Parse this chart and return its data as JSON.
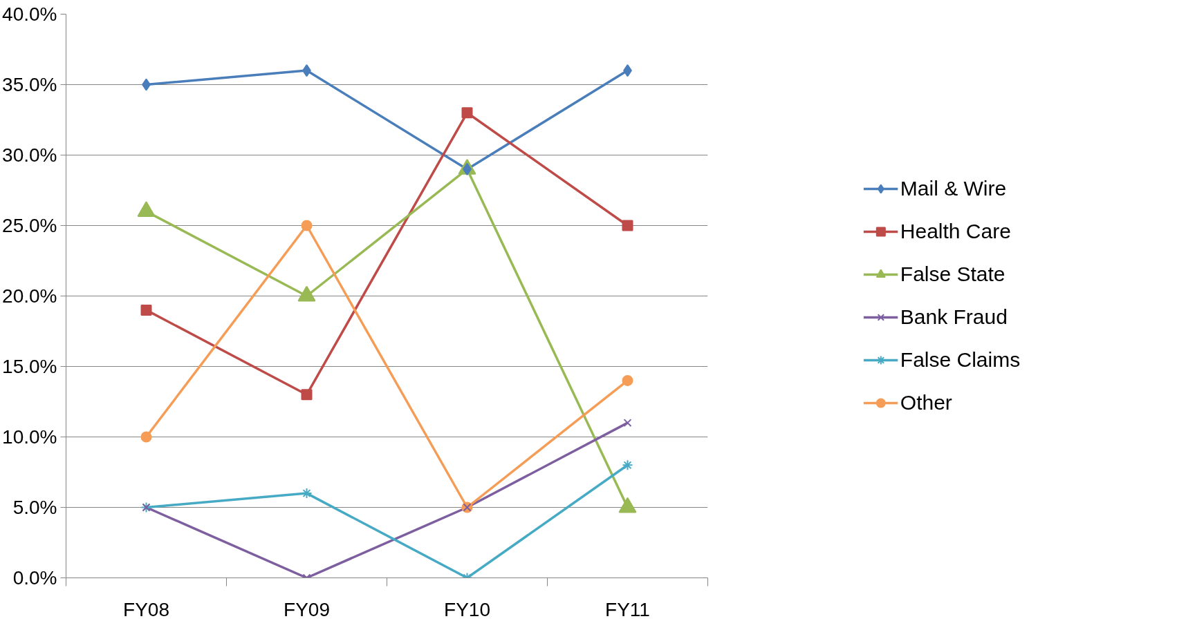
{
  "chart_data": {
    "type": "line",
    "categories": [
      "FY08",
      "FY09",
      "FY10",
      "FY11"
    ],
    "ylim": [
      0,
      40
    ],
    "yticks": [
      {
        "value": 0,
        "label": "0.0%"
      },
      {
        "value": 5,
        "label": "5.0%"
      },
      {
        "value": 10,
        "label": "10.0%"
      },
      {
        "value": 15,
        "label": "15.0%"
      },
      {
        "value": 20,
        "label": "20.0%"
      },
      {
        "value": 25,
        "label": "25.0%"
      },
      {
        "value": 30,
        "label": "30.0%"
      },
      {
        "value": 35,
        "label": "35.0%"
      },
      {
        "value": 40,
        "label": "40.0%"
      }
    ],
    "grid": "y",
    "legend": "right",
    "line_style": "solid",
    "series": [
      {
        "name": "Mail & Wire",
        "color": "#4a7ebb",
        "marker": "diamond",
        "values": [
          35,
          36,
          29,
          36
        ]
      },
      {
        "name": "Health Care",
        "color": "#be4b48",
        "marker": "square",
        "values": [
          19,
          13,
          33,
          25
        ]
      },
      {
        "name": "False State",
        "color": "#98b954",
        "marker": "triangle",
        "values": [
          26,
          20,
          29,
          5
        ]
      },
      {
        "name": "Bank Fraud",
        "color": "#7d5fa0",
        "marker": "cross",
        "values": [
          5,
          0,
          5,
          11
        ]
      },
      {
        "name": "False Claims",
        "color": "#46aac5",
        "marker": "cross",
        "values": [
          5,
          6,
          0,
          8
        ]
      },
      {
        "name": "Other",
        "color": "#f59d56",
        "marker": "circle",
        "values": [
          10,
          25,
          5,
          14
        ]
      }
    ]
  }
}
